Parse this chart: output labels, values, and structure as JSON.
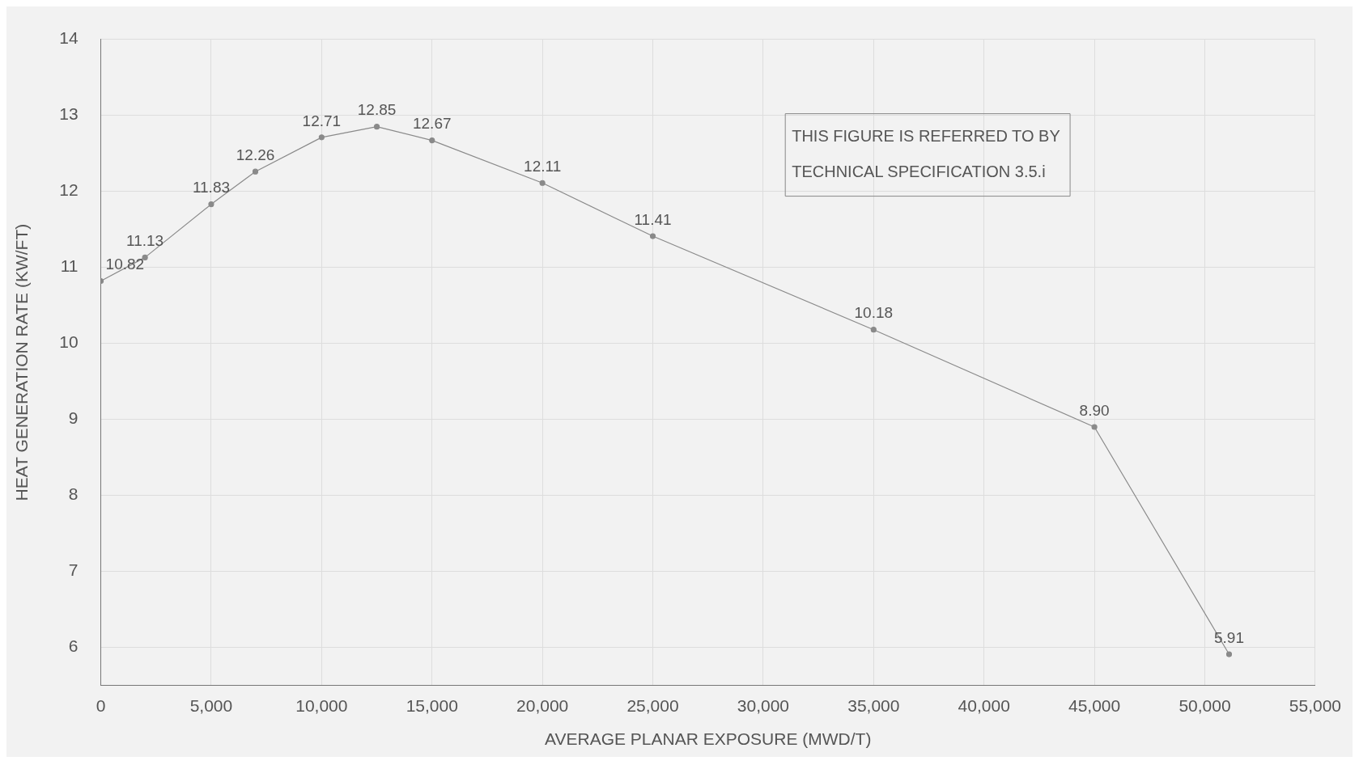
{
  "chart_data": {
    "type": "line",
    "xlabel": "AVERAGE PLANAR EXPOSURE (MWD/T)",
    "ylabel": "HEAT GENERATION RATE (KW/FT)",
    "x": [
      0,
      2000,
      5000,
      7000,
      10000,
      12500,
      15000,
      20000,
      25000,
      35000,
      45000,
      51100
    ],
    "series": [
      {
        "color": "#8a8a8a",
        "values": [
          10.82,
          11.13,
          11.83,
          12.26,
          12.71,
          12.85,
          12.67,
          12.11,
          11.41,
          10.18,
          8.9,
          5.91
        ]
      }
    ],
    "value_labels": [
      "10.82",
      "11.13",
      "11.83",
      "12.26",
      "12.71",
      "12.85",
      "12.67",
      "12.11",
      "11.41",
      "10.18",
      "8.90",
      "5.91"
    ],
    "xlim": [
      0,
      55000
    ],
    "xticks": [
      0,
      {
        "value": 5000,
        "label": "5,000"
      },
      {
        "value": 10000,
        "label": "10,000"
      },
      {
        "value": 15000,
        "label": "15,000"
      },
      {
        "value": 20000,
        "label": "20,000"
      },
      {
        "value": 25000,
        "label": "25,000"
      },
      {
        "value": 30000,
        "label": "30,000"
      },
      {
        "value": 35000,
        "label": "35,000"
      },
      {
        "value": 40000,
        "label": "40,000"
      },
      {
        "value": 45000,
        "label": "45,000"
      },
      {
        "value": 50000,
        "label": "50,000"
      },
      {
        "value": 55000,
        "label": "55,000"
      }
    ],
    "ylim": [
      5.5,
      14
    ],
    "yticks": [
      6,
      7,
      8,
      9,
      10,
      11,
      12,
      13,
      14
    ],
    "annotations": [
      "THIS FIGURE IS REFERRED TO BY",
      "TECHNICAL SPECIFICATION 3.5.i"
    ],
    "grid": true,
    "marker": "circle",
    "line_style": "solid"
  }
}
